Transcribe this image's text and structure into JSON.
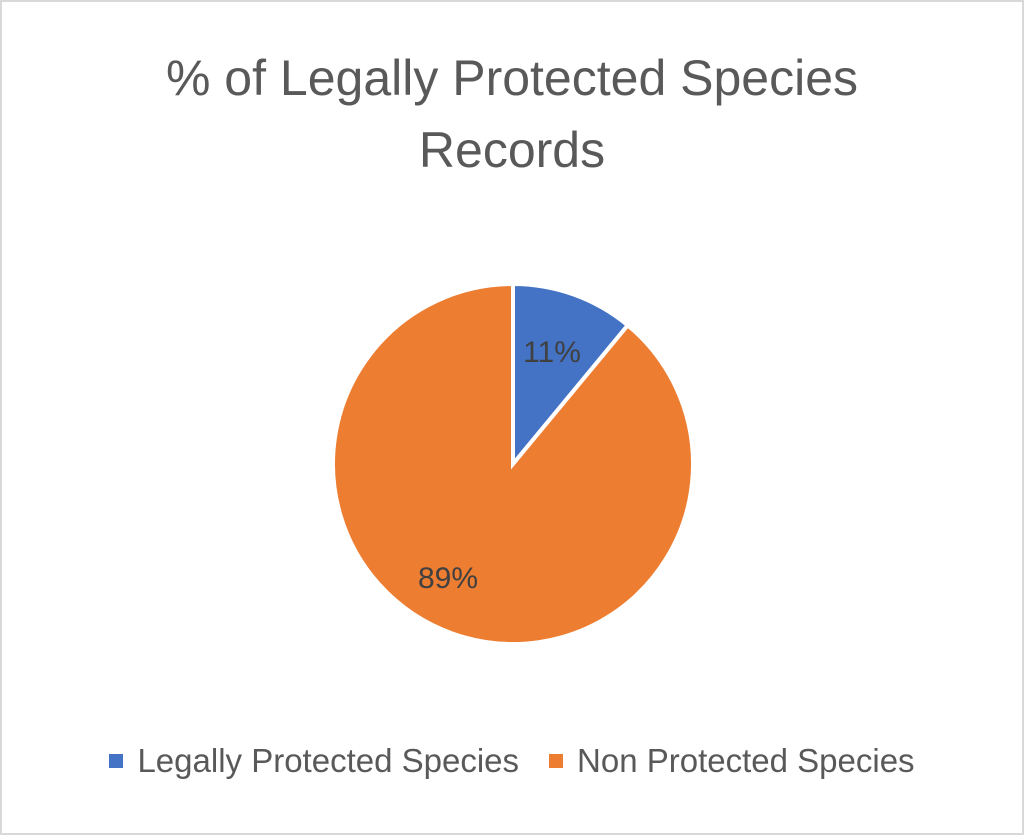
{
  "chart_data": {
    "type": "pie",
    "title_lines": [
      "% of Legally Protected Species",
      "Records"
    ],
    "categories": [
      "Legally Protected Species",
      "Non Protected Species"
    ],
    "values": [
      11,
      89
    ],
    "data_labels": [
      "11%",
      "89%"
    ],
    "colors": [
      "#4472c4",
      "#ed7d31"
    ],
    "legend_position": "bottom"
  }
}
